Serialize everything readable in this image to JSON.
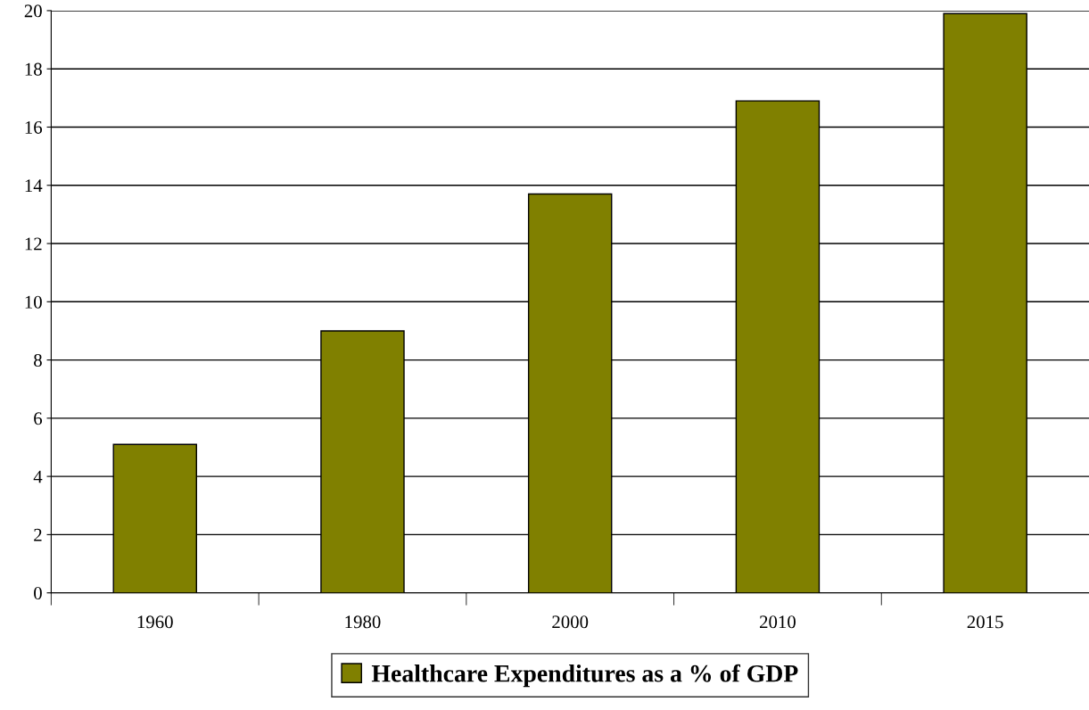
{
  "chart_data": {
    "type": "bar",
    "categories": [
      "1960",
      "1980",
      "2000",
      "2010",
      "2015"
    ],
    "series": [
      {
        "name": "Healthcare Expenditures as a % of GDP",
        "color": "#808000",
        "values": [
          5.1,
          9.0,
          13.7,
          16.9,
          19.9
        ]
      }
    ],
    "ylim": [
      0,
      20
    ],
    "yticks": [
      0,
      2,
      4,
      6,
      8,
      10,
      12,
      14,
      16,
      18,
      20
    ],
    "grid": "y",
    "legend": "bottom"
  }
}
